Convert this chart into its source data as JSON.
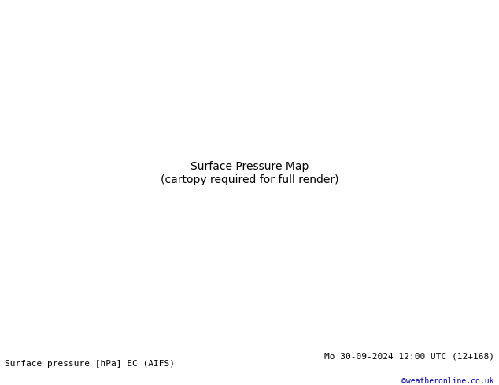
{
  "title_left": "Surface pressure [hPa] EC (AIFS)",
  "title_right": "Mo 30-09-2024 12:00 UTC (12+168)",
  "credit": "©weatheronline.co.uk",
  "fig_width": 6.34,
  "fig_height": 4.9,
  "dpi": 100,
  "bg_color": "#d0d8e8",
  "land_color": "#c8e8a0",
  "ocean_color": "#d8e4f0",
  "border_color": "#888888",
  "coastline_color": "#000000",
  "isobar_red_color": "#dd0000",
  "isobar_blue_color": "#0000cc",
  "isobar_black_color": "#000000",
  "bottom_bar_color": "#ffffff",
  "bottom_text_color": "#000000",
  "credit_color": "#0000aa",
  "label_fontsize": 7,
  "title_fontsize": 8,
  "credit_fontsize": 7
}
